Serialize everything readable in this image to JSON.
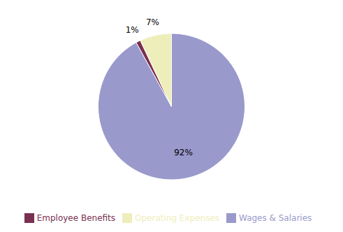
{
  "chart_data": {
    "type": "pie",
    "categories": [
      "Wages & Salaries",
      "Employee Benefits",
      "Operating Expenses"
    ],
    "values": [
      92,
      1,
      7
    ],
    "value_labels": [
      "92%",
      "1%",
      "7%"
    ],
    "data_labels": true,
    "colors": [
      "#9999cc",
      "#7a3050",
      "#eeeebb"
    ],
    "legend": "bottom"
  }
}
